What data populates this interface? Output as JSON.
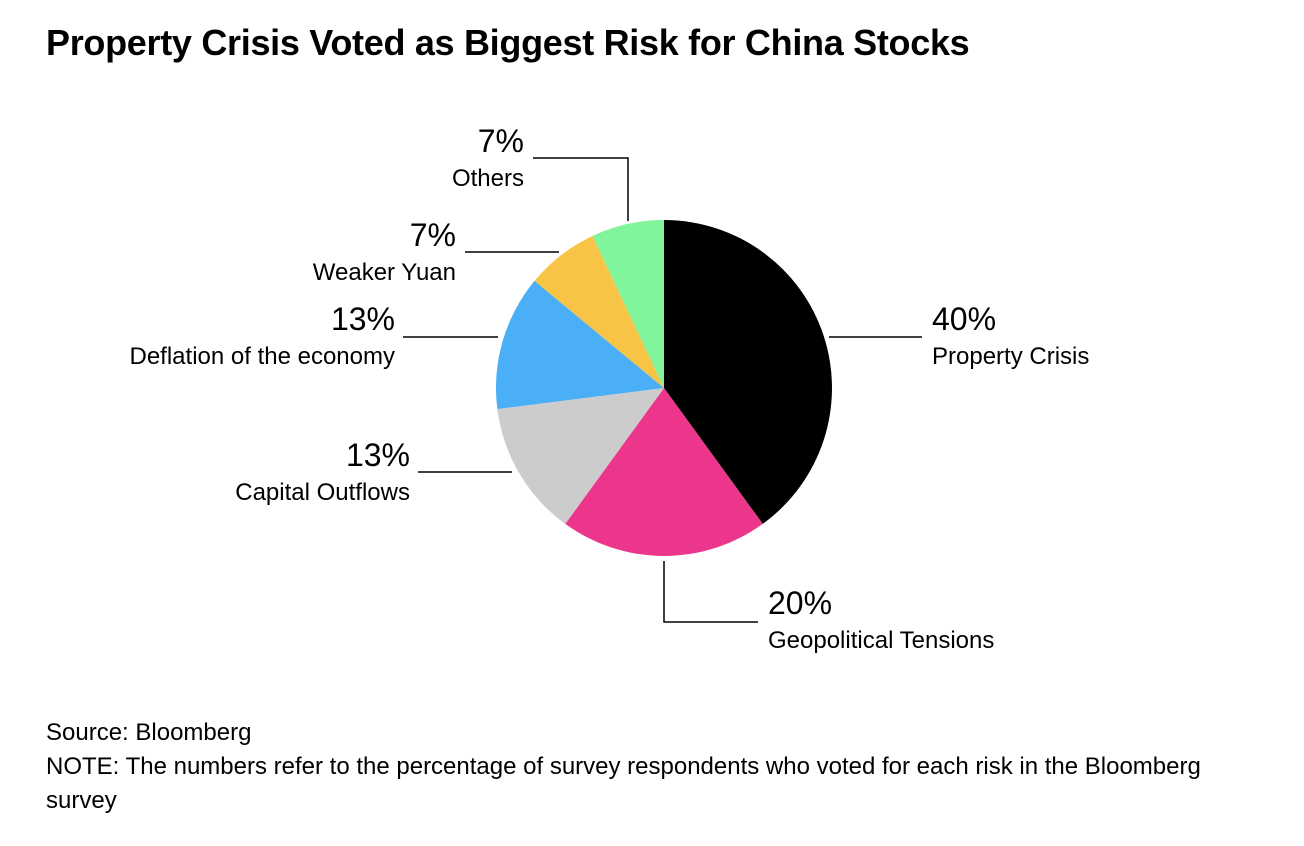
{
  "title": "Property Crisis Voted as Biggest Risk for China Stocks",
  "footer": {
    "source": "Source: Bloomberg",
    "note": "NOTE: The numbers refer to the percentage of survey respondents who voted for each risk in the Bloomberg survey"
  },
  "chart_data": {
    "type": "pie",
    "title": "Property Crisis Voted as Biggest Risk for China Stocks",
    "start_angle": "12 o'clock",
    "direction": "clockwise",
    "slices": [
      {
        "label": "Property Crisis",
        "value": 40,
        "value_label": "40%",
        "color": "#000000"
      },
      {
        "label": "Geopolitical Tensions",
        "value": 20,
        "value_label": "20%",
        "color": "#ec368b"
      },
      {
        "label": "Capital Outflows",
        "value": 13,
        "value_label": "13%",
        "color": "#cccccc"
      },
      {
        "label": "Deflation of the economy",
        "value": 13,
        "value_label": "13%",
        "color": "#4aaff7"
      },
      {
        "label": "Weaker Yuan",
        "value": 7,
        "value_label": "7%",
        "color": "#f8c445"
      },
      {
        "label": "Others",
        "value": 7,
        "value_label": "7%",
        "color": "#80f59c"
      }
    ]
  }
}
